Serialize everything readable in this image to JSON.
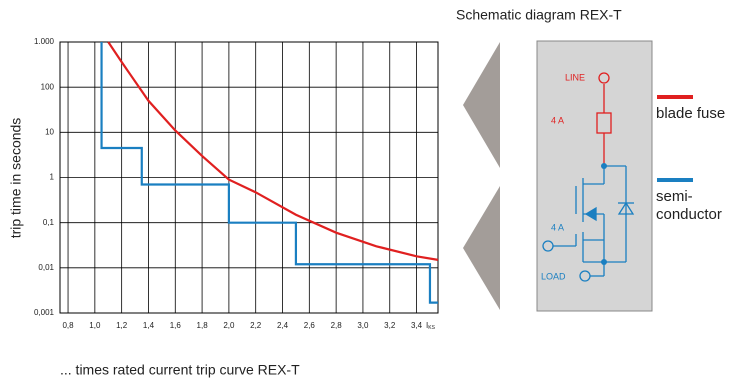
{
  "chart_data": {
    "type": "line",
    "y_axis_label": "trip time in seconds",
    "caption": "... times rated current trip curve REX-T",
    "x_symbol": "I",
    "x_symbol_sub": "KS",
    "log_y": true,
    "grid": true,
    "xlim": [
      0.74,
      3.56
    ],
    "ylim": [
      0.001,
      1000
    ],
    "xticks": [
      {
        "value": 0.8,
        "label": "0,8"
      },
      {
        "value": 1.0,
        "label": "1,0"
      },
      {
        "value": 1.2,
        "label": "1,2"
      },
      {
        "value": 1.4,
        "label": "1,4"
      },
      {
        "value": 1.6,
        "label": "1,6"
      },
      {
        "value": 1.8,
        "label": "1,8"
      },
      {
        "value": 2.0,
        "label": "2,0"
      },
      {
        "value": 2.2,
        "label": "2,2"
      },
      {
        "value": 2.4,
        "label": "2,4"
      },
      {
        "value": 2.6,
        "label": "2,6"
      },
      {
        "value": 2.8,
        "label": "2,8"
      },
      {
        "value": 3.0,
        "label": "3,0"
      },
      {
        "value": 3.2,
        "label": "3,2"
      },
      {
        "value": 3.4,
        "label": "3,4"
      }
    ],
    "yticks": [
      {
        "value": 1000,
        "label": "1.000"
      },
      100,
      10,
      1,
      {
        "value": 0.1,
        "label": "0,1"
      },
      {
        "value": 0.01,
        "label": "0,01"
      },
      {
        "value": 0.001,
        "label": "0,001"
      }
    ],
    "series": [
      {
        "name": "blade fuse",
        "color": "#e02020",
        "x": [
          1.1,
          1.2,
          1.4,
          1.6,
          1.8,
          2.0,
          2.2,
          2.5,
          2.8,
          3.1,
          3.4,
          3.56
        ],
        "values": [
          1000,
          360,
          50,
          11,
          3,
          0.9,
          0.47,
          0.15,
          0.06,
          0.03,
          0.018,
          0.015
        ]
      },
      {
        "name": "semi-\nconductor",
        "color": "#1a7fc1",
        "x": [
          1.05,
          1.05,
          1.35,
          1.35,
          2.0,
          2.0,
          2.5,
          2.5,
          3.5,
          3.5,
          3.56
        ],
        "values": [
          1000,
          4.5,
          4.5,
          0.7,
          0.7,
          0.1,
          0.1,
          0.012,
          0.012,
          0.0017,
          0.0017
        ]
      }
    ]
  },
  "schematic": {
    "title": "Schematic diagram REX-T",
    "line": "LINE",
    "fuse_rating": "4 A",
    "gate_rating": "4 A",
    "load": "LOAD"
  }
}
